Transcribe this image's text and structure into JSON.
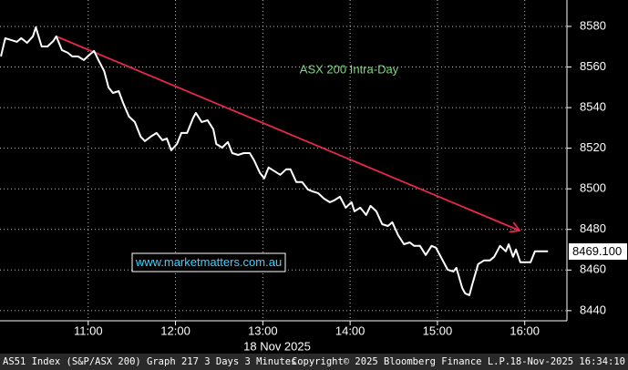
{
  "chart_data": {
    "type": "line",
    "title": "ASX 200 Intra-Day",
    "x_label": "18 Nov 2025",
    "watermark": "www.marketmatters.com.au",
    "last_price": {
      "value": 8469.1,
      "label": "8469.100"
    },
    "footer": {
      "left": "AS51 Index (S&P/ASX 200) Graph 217 3 Days 3 Minutes",
      "center": "Copyright© 2025 Bloomberg Finance L.P.",
      "right": "18-Nov-2025 16:34:10"
    },
    "x": [
      "10:00",
      "10:03",
      "10:07",
      "10:11",
      "10:14",
      "10:18",
      "10:22",
      "10:24",
      "10:28",
      "10:32",
      "10:36",
      "10:38",
      "10:42",
      "10:46",
      "10:49",
      "10:53",
      "10:57",
      "11:01",
      "11:04",
      "11:07",
      "11:11",
      "11:14",
      "11:17",
      "11:21",
      "11:24",
      "11:28",
      "11:32",
      "11:36",
      "11:39",
      "11:43",
      "11:47",
      "11:51",
      "11:54",
      "11:57",
      "12:01",
      "12:04",
      "12:08",
      "12:12",
      "12:14",
      "12:18",
      "12:22",
      "12:26",
      "12:28",
      "12:32",
      "12:36",
      "12:39",
      "12:43",
      "12:47",
      "12:51",
      "12:54",
      "12:58",
      "13:01",
      "13:04",
      "13:08",
      "13:12",
      "13:16",
      "13:19",
      "13:23",
      "13:27",
      "13:31",
      "13:34",
      "13:38",
      "13:42",
      "13:46",
      "13:49",
      "13:53",
      "13:57",
      "14:01",
      "14:03",
      "14:07",
      "14:11",
      "14:14",
      "14:18",
      "14:22",
      "14:26",
      "14:29",
      "14:33",
      "14:37",
      "14:41",
      "14:44",
      "14:48",
      "14:52",
      "14:56",
      "14:59",
      "15:03",
      "15:07",
      "15:11",
      "15:13",
      "15:17",
      "15:19",
      "15:22",
      "15:24",
      "15:28",
      "15:32",
      "15:36",
      "15:39",
      "15:43",
      "15:47",
      "15:49",
      "15:52",
      "15:54",
      "15:57",
      "16:01",
      "16:04",
      "16:07",
      "16:12",
      "16:16"
    ],
    "values": [
      8565.2,
      8574.2,
      8573.3,
      8572.4,
      8574.2,
      8571.9,
      8575.1,
      8579.6,
      8570.1,
      8570.1,
      8572.8,
      8575.1,
      8568.3,
      8567.0,
      8565.2,
      8565.2,
      8563.4,
      8566.1,
      8567.9,
      8563.4,
      8558.0,
      8549.9,
      8547.2,
      8548.1,
      8542.3,
      8535.6,
      8532.9,
      8525.7,
      8523.5,
      8525.7,
      8527.5,
      8523.9,
      8524.8,
      8519.0,
      8522.1,
      8527.5,
      8527.5,
      8534.7,
      8537.4,
      8532.9,
      8533.8,
      8529.3,
      8522.1,
      8520.3,
      8523.0,
      8517.6,
      8516.7,
      8517.6,
      8517.6,
      8514.0,
      8507.8,
      8505.1,
      8510.5,
      8508.7,
      8506.9,
      8509.6,
      8509.6,
      8503.3,
      8503.3,
      8499.7,
      8498.8,
      8497.9,
      8495.2,
      8493.4,
      8494.3,
      8496.1,
      8490.7,
      8493.4,
      8488.9,
      8490.7,
      8487.1,
      8491.6,
      8488.9,
      8482.6,
      8481.7,
      8483.5,
      8477.2,
      8472.7,
      8473.6,
      8471.9,
      8471.9,
      8467.4,
      8471.9,
      8471.0,
      8465.6,
      8460.2,
      8459.3,
      8461.1,
      8451.2,
      8448.5,
      8447.6,
      8453.0,
      8462.9,
      8464.7,
      8464.7,
      8466.5,
      8471.9,
      8469.2,
      8472.7,
      8466.5,
      8470.1,
      8463.8,
      8463.8,
      8463.8,
      8469.2,
      8469.2,
      8469.2
    ],
    "color": "#ffffff",
    "xlim": [
      "10:00",
      "16:29"
    ],
    "xticks": [
      "11:00",
      "12:00",
      "13:00",
      "14:00",
      "15:00",
      "16:00"
    ],
    "ylim": [
      8435,
      8593
    ],
    "yticks": [
      8440,
      8460,
      8480,
      8500,
      8520,
      8540,
      8560,
      8580
    ],
    "grid": true
  }
}
